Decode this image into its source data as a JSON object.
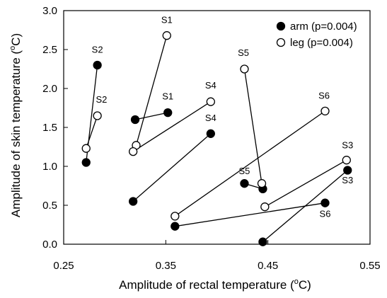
{
  "chart_data": {
    "type": "scatter",
    "xlabel": "Amplitude of rectal temperature (",
    "xlabel_unit_sup": "o",
    "xlabel_unit": "C)",
    "ylabel": "Amplitude of skin temperature (",
    "ylabel_unit_sup": "o",
    "ylabel_unit": "C)",
    "xlim": [
      0.25,
      0.55
    ],
    "ylim": [
      0.0,
      3.0
    ],
    "xticks": [
      "0.25",
      "0.35",
      "0.45",
      "0.55"
    ],
    "yticks": [
      "0.0",
      "0.5",
      "1.0",
      "1.5",
      "2.0",
      "2.5",
      "3.0"
    ],
    "legend_position": "top-right",
    "legend": [
      {
        "marker": "filled",
        "label": "arm  (p=0.004)"
      },
      {
        "marker": "open",
        "label": "leg  (p=0.004)"
      }
    ],
    "series": [
      {
        "name": "arm",
        "marker": "filled",
        "pairs": [
          {
            "subject": "S1",
            "points": [
              [
                0.32,
                1.6
              ],
              [
                0.352,
                1.69
              ]
            ]
          },
          {
            "subject": "S2",
            "points": [
              [
                0.272,
                1.05
              ],
              [
                0.283,
                2.3
              ]
            ]
          },
          {
            "subject": "S3",
            "points": [
              [
                0.445,
                0.03
              ],
              [
                0.528,
                0.95
              ]
            ]
          },
          {
            "subject": "S4",
            "points": [
              [
                0.318,
                0.55
              ],
              [
                0.394,
                1.42
              ]
            ]
          },
          {
            "subject": "S5",
            "points": [
              [
                0.427,
                0.78
              ],
              [
                0.445,
                0.71
              ]
            ]
          },
          {
            "subject": "S6",
            "points": [
              [
                0.359,
                0.23
              ],
              [
                0.506,
                0.53
              ]
            ]
          }
        ]
      },
      {
        "name": "leg",
        "marker": "open",
        "pairs": [
          {
            "subject": "S1",
            "points": [
              [
                0.321,
                1.27
              ],
              [
                0.351,
                2.68
              ]
            ]
          },
          {
            "subject": "S2",
            "points": [
              [
                0.272,
                1.23
              ],
              [
                0.283,
                1.65
              ]
            ]
          },
          {
            "subject": "S3",
            "points": [
              [
                0.447,
                0.48
              ],
              [
                0.527,
                1.08
              ]
            ]
          },
          {
            "subject": "S4",
            "points": [
              [
                0.318,
                1.19
              ],
              [
                0.394,
                1.83
              ]
            ]
          },
          {
            "subject": "S5",
            "points": [
              [
                0.427,
                2.25
              ],
              [
                0.444,
                0.78
              ]
            ]
          },
          {
            "subject": "S6",
            "points": [
              [
                0.359,
                0.36
              ],
              [
                0.506,
                1.71
              ]
            ]
          }
        ]
      }
    ],
    "point_labels": [
      {
        "text": "S1",
        "x": 0.351,
        "y": 2.84
      },
      {
        "text": "S2",
        "x": 0.283,
        "y": 2.46
      },
      {
        "text": "S2",
        "x": 0.287,
        "y": 1.82
      },
      {
        "text": "S1",
        "x": 0.352,
        "y": 1.86
      },
      {
        "text": "S4",
        "x": 0.394,
        "y": 2.0
      },
      {
        "text": "S4",
        "x": 0.394,
        "y": 1.58
      },
      {
        "text": "S5",
        "x": 0.426,
        "y": 2.42
      },
      {
        "text": "S6",
        "x": 0.505,
        "y": 1.87
      },
      {
        "text": "S3",
        "x": 0.528,
        "y": 1.23
      },
      {
        "text": "S3",
        "x": 0.528,
        "y": 0.78
      },
      {
        "text": "S5",
        "x": 0.427,
        "y": 0.9
      },
      {
        "text": "S6",
        "x": 0.506,
        "y": 0.35
      }
    ]
  }
}
